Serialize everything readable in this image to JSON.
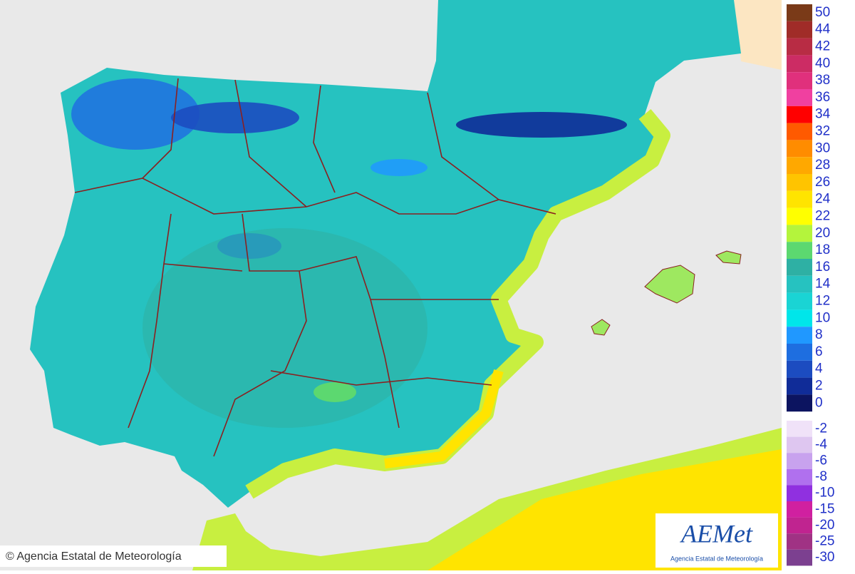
{
  "legend": {
    "upper": [
      {
        "label": "50",
        "color": "#7a3a18"
      },
      {
        "label": "44",
        "color": "#a02c28"
      },
      {
        "label": "42",
        "color": "#b82c44"
      },
      {
        "label": "40",
        "color": "#cc2c64"
      },
      {
        "label": "38",
        "color": "#e0307c"
      },
      {
        "label": "36",
        "color": "#f040a0"
      },
      {
        "label": "34",
        "color": "#ff0000"
      },
      {
        "label": "32",
        "color": "#ff5a00"
      },
      {
        "label": "30",
        "color": "#ff8c00"
      },
      {
        "label": "28",
        "color": "#ffa800"
      },
      {
        "label": "26",
        "color": "#ffc400"
      },
      {
        "label": "24",
        "color": "#ffe400"
      },
      {
        "label": "22",
        "color": "#ffff00"
      },
      {
        "label": "20",
        "color": "#b4f43c"
      },
      {
        "label": "18",
        "color": "#5cd870"
      },
      {
        "label": "16",
        "color": "#2eb0a4"
      },
      {
        "label": "14",
        "color": "#26c2c0"
      },
      {
        "label": "12",
        "color": "#1ad4d4"
      },
      {
        "label": "10",
        "color": "#00e6ea"
      },
      {
        "label": "8",
        "color": "#2098ff"
      },
      {
        "label": "6",
        "color": "#1e6ee0"
      },
      {
        "label": "4",
        "color": "#1c4cc0"
      },
      {
        "label": "2",
        "color": "#102c98"
      },
      {
        "label": "0",
        "color": "#0c1460"
      }
    ],
    "lower": [
      {
        "label": "-2",
        "color": "#f0e2f8"
      },
      {
        "label": "-4",
        "color": "#dec6f0"
      },
      {
        "label": "-6",
        "color": "#c8a2ee"
      },
      {
        "label": "-8",
        "color": "#b070ee"
      },
      {
        "label": "-10",
        "color": "#9030e0"
      },
      {
        "label": "-15",
        "color": "#d020a0"
      },
      {
        "label": "-20",
        "color": "#c02490"
      },
      {
        "label": "-25",
        "color": "#a03284"
      },
      {
        "label": "-30",
        "color": "#7c4090"
      }
    ]
  },
  "credit": "© Agencia Estatal de Meteorología",
  "logo": {
    "name": "AEMet",
    "subtitle": "Agencia Estatal de Meteorología"
  }
}
